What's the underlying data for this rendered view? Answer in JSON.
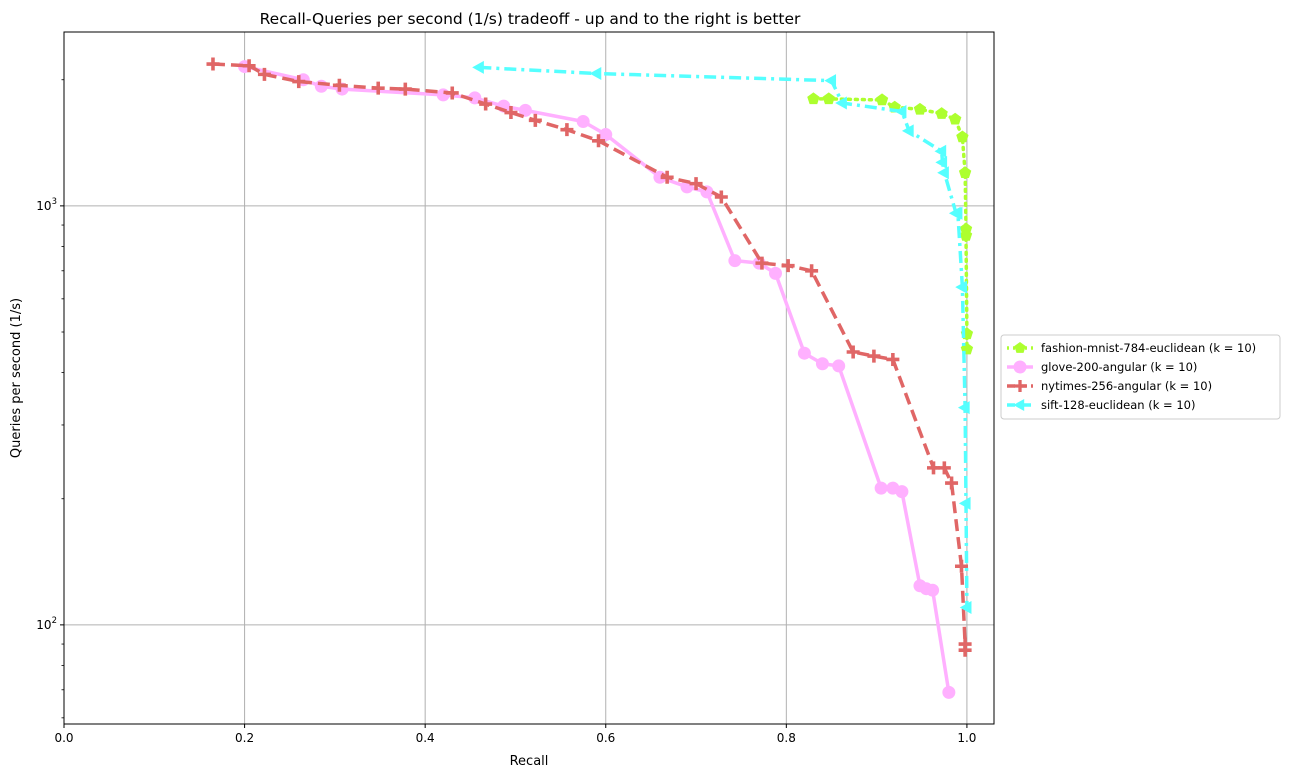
{
  "chart_data": {
    "type": "line",
    "title": "Recall-Queries per second (1/s) tradeoff - up and to the right is better",
    "xlabel": "Recall",
    "ylabel": "Queries per second (1/s)",
    "xlim": [
      0.0,
      1.03
    ],
    "ylim": [
      58,
      2600
    ],
    "yscale": "log",
    "grid": true,
    "legend_position": "right-outside",
    "x_ticks": [
      {
        "value": 0.0,
        "label": "0.0"
      },
      {
        "value": 0.2,
        "label": "0.2"
      },
      {
        "value": 0.4,
        "label": "0.4"
      },
      {
        "value": 0.6,
        "label": "0.6"
      },
      {
        "value": 0.8,
        "label": "0.8"
      },
      {
        "value": 1.0,
        "label": "1.0"
      }
    ],
    "y_ticks": [
      {
        "value": 100,
        "base": "10",
        "exp": "2"
      },
      {
        "value": 1000,
        "base": "10",
        "exp": "3"
      }
    ],
    "series": [
      {
        "name": "fashion-mnist-784-euclidean (k = 10)",
        "color": "#adff2f",
        "dash": "dotted",
        "marker": "pentagon",
        "points": [
          [
            0.83,
            1800
          ],
          [
            0.847,
            1800
          ],
          [
            0.906,
            1790
          ],
          [
            0.92,
            1720
          ],
          [
            0.948,
            1700
          ],
          [
            0.972,
            1660
          ],
          [
            0.987,
            1610
          ],
          [
            0.995,
            1460
          ],
          [
            0.998,
            1200
          ],
          [
            0.999,
            880
          ],
          [
            0.999,
            850
          ],
          [
            1.0,
            495
          ],
          [
            1.0,
            455
          ]
        ]
      },
      {
        "name": "glove-200-angular (k = 10)",
        "color": "#ffb0ff",
        "dash": "solid",
        "marker": "circle",
        "points": [
          [
            0.2,
            2150
          ],
          [
            0.265,
            2000
          ],
          [
            0.285,
            1930
          ],
          [
            0.308,
            1900
          ],
          [
            0.42,
            1840
          ],
          [
            0.455,
            1810
          ],
          [
            0.487,
            1730
          ],
          [
            0.511,
            1690
          ],
          [
            0.575,
            1590
          ],
          [
            0.6,
            1480
          ],
          [
            0.66,
            1170
          ],
          [
            0.69,
            1110
          ],
          [
            0.712,
            1080
          ],
          [
            0.743,
            740
          ],
          [
            0.77,
            730
          ],
          [
            0.788,
            690
          ],
          [
            0.82,
            445
          ],
          [
            0.84,
            420
          ],
          [
            0.858,
            415
          ],
          [
            0.905,
            212
          ],
          [
            0.918,
            212
          ],
          [
            0.928,
            208
          ],
          [
            0.948,
            124
          ],
          [
            0.955,
            122
          ],
          [
            0.962,
            121
          ],
          [
            0.98,
            69
          ]
        ]
      },
      {
        "name": "nytimes-256-angular (k = 10)",
        "color": "#e06666",
        "dash": "dashed",
        "marker": "plus",
        "points": [
          [
            0.165,
            2180
          ],
          [
            0.205,
            2160
          ],
          [
            0.222,
            2060
          ],
          [
            0.26,
            1980
          ],
          [
            0.305,
            1940
          ],
          [
            0.348,
            1910
          ],
          [
            0.378,
            1900
          ],
          [
            0.43,
            1860
          ],
          [
            0.467,
            1750
          ],
          [
            0.495,
            1670
          ],
          [
            0.522,
            1600
          ],
          [
            0.557,
            1520
          ],
          [
            0.592,
            1430
          ],
          [
            0.668,
            1170
          ],
          [
            0.7,
            1130
          ],
          [
            0.728,
            1050
          ],
          [
            0.773,
            730
          ],
          [
            0.802,
            720
          ],
          [
            0.828,
            700
          ],
          [
            0.874,
            448
          ],
          [
            0.897,
            438
          ],
          [
            0.918,
            430
          ],
          [
            0.963,
            237
          ],
          [
            0.975,
            237
          ],
          [
            0.983,
            218
          ],
          [
            0.994,
            138
          ],
          [
            0.998,
            90
          ],
          [
            0.998,
            87
          ]
        ]
      },
      {
        "name": "sift-128-euclidean (k = 10)",
        "color": "#55ffff",
        "dash": "dashdot",
        "marker": "triangle-left",
        "points": [
          [
            0.46,
            2140
          ],
          [
            0.59,
            2070
          ],
          [
            0.85,
            1990
          ],
          [
            0.862,
            1760
          ],
          [
            0.928,
            1680
          ],
          [
            0.936,
            1510
          ],
          [
            0.972,
            1350
          ],
          [
            0.973,
            1270
          ],
          [
            0.975,
            1200
          ],
          [
            0.988,
            960
          ],
          [
            0.99,
            960
          ],
          [
            0.995,
            640
          ],
          [
            0.998,
            330
          ],
          [
            0.999,
            195
          ],
          [
            1.0,
            110
          ]
        ]
      }
    ]
  }
}
